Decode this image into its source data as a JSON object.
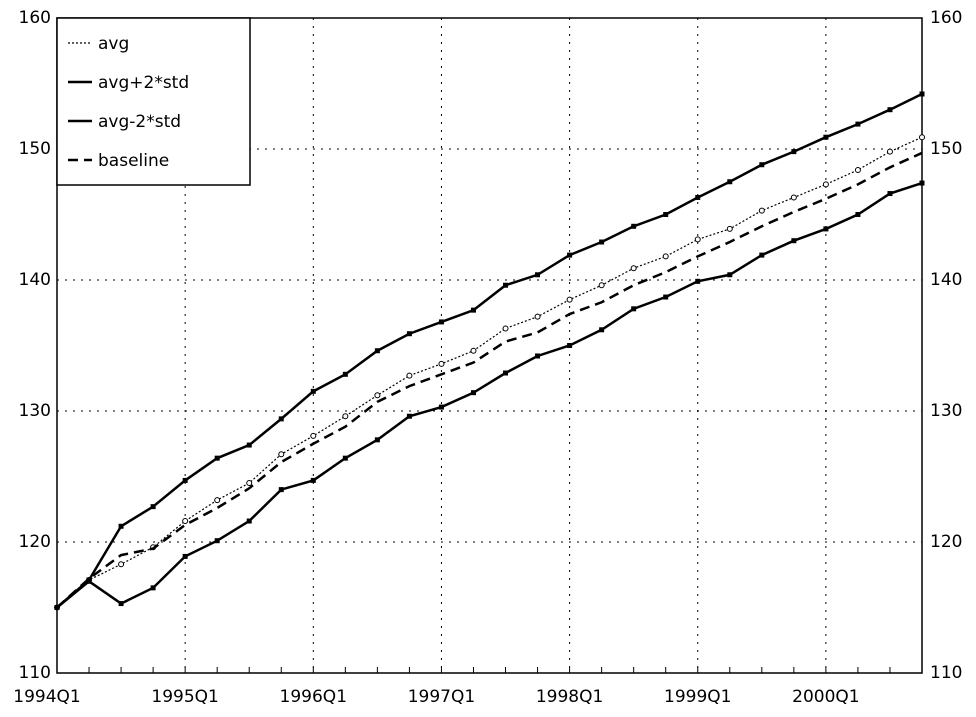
{
  "chart_data": {
    "type": "line",
    "categories": [
      "1994Q1",
      null,
      null,
      null,
      "1995Q1",
      null,
      null,
      null,
      "1996Q1",
      null,
      null,
      null,
      "1997Q1",
      null,
      null,
      null,
      "1998Q1",
      null,
      null,
      null,
      "1999Q1",
      null,
      null,
      null,
      "2000Q1",
      null,
      null,
      null
    ],
    "series": [
      {
        "name": "avg",
        "color": "#000000",
        "line_style": "dotted",
        "marker": "circle",
        "values": [
          115,
          117.1,
          118.3,
          119.6,
          121.6,
          123.2,
          124.5,
          126.7,
          128.1,
          129.6,
          131.2,
          132.7,
          133.6,
          134.6,
          136.3,
          137.2,
          138.5,
          139.6,
          140.9,
          141.8,
          143.1,
          143.9,
          145.3,
          146.3,
          147.3,
          148.4,
          149.8,
          150.9
        ]
      },
      {
        "name": "avg+2*std",
        "color": "#000000",
        "line_style": "solid",
        "marker": "square",
        "values": [
          115,
          117.1,
          121.2,
          122.7,
          124.7,
          126.4,
          127.4,
          129.4,
          131.5,
          132.8,
          134.6,
          135.9,
          136.8,
          137.7,
          139.6,
          140.4,
          141.9,
          142.9,
          144.1,
          145.0,
          146.3,
          147.5,
          148.8,
          149.8,
          150.9,
          151.9,
          153.0,
          154.2
        ]
      },
      {
        "name": "avg-2*std",
        "color": "#000000",
        "line_style": "solid",
        "marker": "square",
        "values": [
          115,
          117.0,
          115.3,
          116.5,
          118.9,
          120.1,
          121.6,
          124.0,
          124.7,
          126.4,
          127.8,
          129.6,
          130.3,
          131.4,
          132.9,
          134.2,
          135.0,
          136.2,
          137.8,
          138.7,
          139.9,
          140.4,
          141.9,
          143.0,
          143.9,
          145.0,
          146.6,
          147.4
        ]
      },
      {
        "name": "baseline",
        "color": "#000000",
        "line_style": "dashed",
        "marker": "none",
        "values": [
          115,
          117.2,
          119.0,
          119.5,
          121.3,
          122.6,
          124.1,
          126.1,
          127.5,
          128.8,
          130.7,
          131.9,
          132.8,
          133.7,
          135.3,
          136.0,
          137.4,
          138.3,
          139.6,
          140.6,
          141.8,
          142.9,
          144.1,
          145.2,
          146.2,
          147.3,
          148.6,
          149.7
        ]
      }
    ],
    "ylim": [
      110,
      160
    ],
    "yticks": [
      110,
      120,
      130,
      140,
      150,
      160
    ],
    "grid": true,
    "legend": "upper left"
  }
}
